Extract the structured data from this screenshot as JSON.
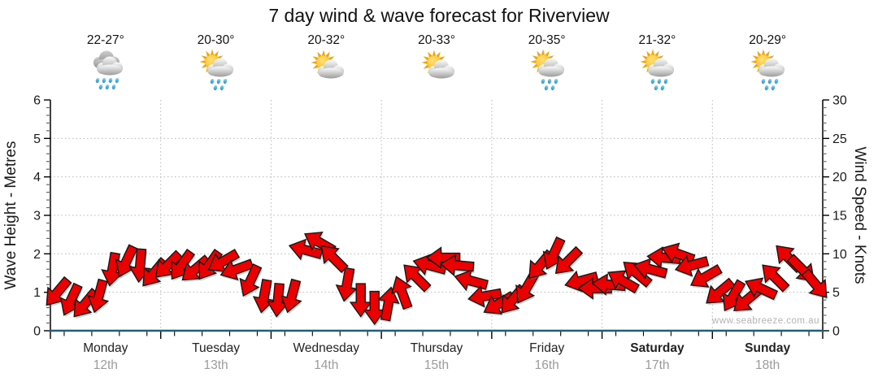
{
  "title": "7 day wind & wave forecast for Riverview",
  "watermark": "www.seabreeze.com.au",
  "days": [
    {
      "name": "Monday",
      "date": "12th",
      "temp": "22-27°",
      "icon": "rain"
    },
    {
      "name": "Tuesday",
      "date": "13th",
      "temp": "20-30°",
      "icon": "sun-cloud-rain"
    },
    {
      "name": "Wednesday",
      "date": "14th",
      "temp": "20-32°",
      "icon": "sun-cloud"
    },
    {
      "name": "Thursday",
      "date": "15th",
      "temp": "20-33°",
      "icon": "sun-cloud"
    },
    {
      "name": "Friday",
      "date": "16th",
      "temp": "20-35°",
      "icon": "sun-cloud-rain"
    },
    {
      "name": "Saturday",
      "date": "17th",
      "temp": "21-32°",
      "icon": "sun-cloud-rain",
      "weekend": true
    },
    {
      "name": "Sunday",
      "date": "18th",
      "temp": "20-29°",
      "icon": "sun-cloud-rain",
      "weekend": true
    }
  ],
  "chart_data": {
    "type": "scatter",
    "subtype": "wind-arrow-forecast",
    "interval_hours": 3,
    "x_categories": [
      "Monday 12th",
      "Tuesday 13th",
      "Wednesday 14th",
      "Thursday 15th",
      "Friday 16th",
      "Saturday 17th",
      "Sunday 18th"
    ],
    "left_axis": {
      "label": "Wave Height - Metres",
      "range": [
        0,
        6
      ],
      "major_ticks": [
        0,
        1,
        2,
        3,
        4,
        5,
        6
      ],
      "minor_step": 0.2
    },
    "right_axis": {
      "label": "Wind Speed - Knots",
      "range": [
        0,
        30
      ],
      "major_ticks": [
        0,
        5,
        10,
        15,
        20,
        25,
        30
      ],
      "minor_step": 1
    },
    "grid": {
      "h_lines_metres": [
        1,
        2,
        3,
        4,
        5
      ],
      "v_lines": "day-boundaries",
      "style": "dotted"
    },
    "wave_height_m": {
      "note": "flat line at zero across all 7 days",
      "value": 0,
      "color": "#1e5f80"
    },
    "wind_knots": {
      "arrow_color": "#ea0000",
      "arrow_outline": "#161616",
      "dir_convention": "degrees clockwise of arrow heading; 0=east(right), 90=south(down), 180=west(left), 270=north(up)",
      "series": [
        {
          "day": "Monday",
          "arrows": [
            {
              "kn": 5,
              "dir": 130
            },
            {
              "kn": 4,
              "dir": 115
            },
            {
              "kn": 3.5,
              "dir": 130
            },
            {
              "kn": 4.5,
              "dir": 105
            },
            {
              "kn": 8,
              "dir": 100
            },
            {
              "kn": 9,
              "dir": 115
            },
            {
              "kn": 8.5,
              "dir": 95
            },
            {
              "kn": 7.5,
              "dir": 130
            }
          ]
        },
        {
          "day": "Tuesday",
          "arrows": [
            {
              "kn": 8.5,
              "dir": 135
            },
            {
              "kn": 8.5,
              "dir": 125
            },
            {
              "kn": 8,
              "dir": 140
            },
            {
              "kn": 8.5,
              "dir": 125
            },
            {
              "kn": 9,
              "dir": 150
            },
            {
              "kn": 8,
              "dir": 160
            },
            {
              "kn": 6.5,
              "dir": 115
            },
            {
              "kn": 4.5,
              "dir": 100
            }
          ]
        },
        {
          "day": "Wednesday",
          "arrows": [
            {
              "kn": 4,
              "dir": 95
            },
            {
              "kn": 4.5,
              "dir": 105
            },
            {
              "kn": 10.5,
              "dir": 195
            },
            {
              "kn": 11.5,
              "dir": 210
            },
            {
              "kn": 9.5,
              "dir": 225
            },
            {
              "kn": 6,
              "dir": 100
            },
            {
              "kn": 4,
              "dir": 90
            },
            {
              "kn": 3,
              "dir": 90
            }
          ]
        },
        {
          "day": "Thursday",
          "arrows": [
            {
              "kn": 3.5,
              "dir": 280
            },
            {
              "kn": 5,
              "dir": 250
            },
            {
              "kn": 7,
              "dir": 225
            },
            {
              "kn": 8.5,
              "dir": 195
            },
            {
              "kn": 9.5,
              "dir": 180
            },
            {
              "kn": 8.5,
              "dir": 185
            },
            {
              "kn": 6.5,
              "dir": 195
            },
            {
              "kn": 4.5,
              "dir": 170
            }
          ]
        },
        {
          "day": "Friday",
          "arrows": [
            {
              "kn": 3.5,
              "dir": 150
            },
            {
              "kn": 4,
              "dir": 130
            },
            {
              "kn": 5.5,
              "dir": 120
            },
            {
              "kn": 8.5,
              "dir": 130
            },
            {
              "kn": 10,
              "dir": 115
            },
            {
              "kn": 9,
              "dir": 135
            },
            {
              "kn": 6.5,
              "dir": 165
            },
            {
              "kn": 5.5,
              "dir": 180
            }
          ]
        },
        {
          "day": "Saturday",
          "arrows": [
            {
              "kn": 6,
              "dir": 185
            },
            {
              "kn": 6.5,
              "dir": 210
            },
            {
              "kn": 7.5,
              "dir": 220
            },
            {
              "kn": 8,
              "dir": 195
            },
            {
              "kn": 9.5,
              "dir": 185
            },
            {
              "kn": 10,
              "dir": 200
            },
            {
              "kn": 8.5,
              "dir": 165
            },
            {
              "kn": 7,
              "dir": 150
            }
          ]
        },
        {
          "day": "Sunday",
          "arrows": [
            {
              "kn": 5,
              "dir": 140
            },
            {
              "kn": 4.5,
              "dir": 120
            },
            {
              "kn": 4,
              "dir": 140
            },
            {
              "kn": 5.5,
              "dir": 205
            },
            {
              "kn": 7,
              "dir": 225
            },
            {
              "kn": 9.5,
              "dir": 225
            },
            {
              "kn": 8,
              "dir": 45
            },
            {
              "kn": 6,
              "dir": 50
            }
          ]
        }
      ]
    }
  }
}
